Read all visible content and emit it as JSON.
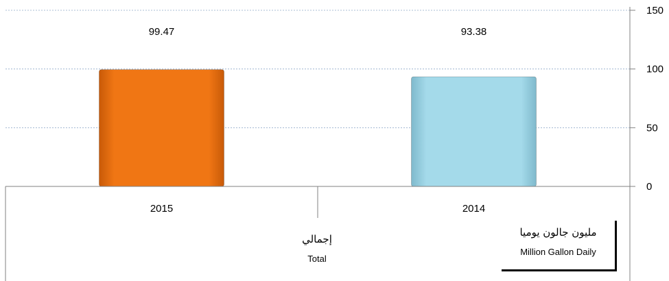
{
  "chart_data": {
    "type": "bar",
    "categories": [
      "2015",
      "2014"
    ],
    "values": [
      99.47,
      93.38
    ],
    "value_labels": [
      "99.47",
      "93.38"
    ],
    "colors": [
      "#F07614",
      "#A4DAEA"
    ],
    "ylim": [
      0,
      150
    ],
    "yticks": [
      0,
      50,
      100,
      150
    ],
    "y_axis_position": "right",
    "grid": true,
    "title": "",
    "xlabel": "",
    "ylabel": ""
  },
  "unit_label": {
    "arabic": "مليون جالون يوميا",
    "english": "Million Gallon Daily"
  },
  "group_label": {
    "arabic": "إجمالي",
    "english": "Total"
  }
}
